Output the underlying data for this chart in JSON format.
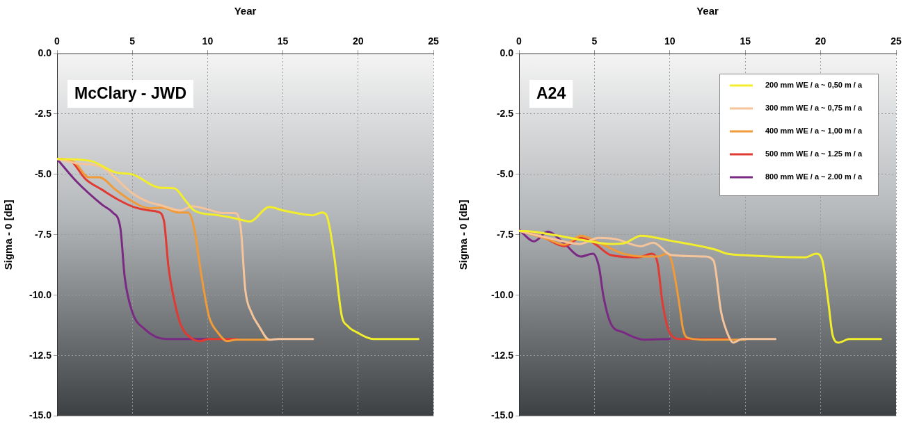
{
  "chart_data": [
    {
      "type": "line",
      "xlabel": "Year",
      "ylabel": "Sigma - 0 [dB]",
      "annotations": [
        "McClary - JWD"
      ],
      "xlim": [
        0,
        25
      ],
      "xticks": [
        0,
        5,
        10,
        15,
        20,
        25
      ],
      "ylim": [
        -15,
        0
      ],
      "yticks": [
        {
          "value": 0,
          "label": "0.0"
        },
        -2.5,
        {
          "value": -5,
          "label": "-5.0"
        },
        -7.5,
        {
          "value": -10,
          "label": "-10.0"
        },
        -12.5,
        {
          "value": -15,
          "label": "-15.0"
        }
      ],
      "grid": true,
      "legend": false,
      "marker": "none",
      "line_style": "solid",
      "series": [
        {
          "color": "#f2ee2c",
          "x": [
            0,
            2.2,
            3.9,
            5.0,
            6.8,
            7.8,
            8.5,
            9.1,
            10.7,
            11.9,
            12.8,
            14.1,
            15.0,
            17.0,
            17.6,
            17.9,
            18.4,
            18.9,
            19.3,
            19.9,
            21.0,
            24
          ],
          "values": [
            -4.36,
            -4.44,
            -4.92,
            -5.0,
            -5.55,
            -5.58,
            -6.06,
            -6.49,
            -6.69,
            -6.83,
            -6.95,
            -6.35,
            -6.49,
            -6.69,
            -6.58,
            -6.69,
            -8.34,
            -10.82,
            -11.27,
            -11.53,
            -11.81,
            -11.81
          ]
        },
        {
          "color": "#f6c49a",
          "x": [
            0,
            1.4,
            2.7,
            3.3,
            5.0,
            6.1,
            6.8,
            8.2,
            9.0,
            9.9,
            11.0,
            11.8,
            12.2,
            12.5,
            12.9,
            13.4,
            14.1,
            14.7,
            17
          ],
          "values": [
            -4.36,
            -4.55,
            -4.64,
            -4.83,
            -5.78,
            -6.15,
            -6.26,
            -6.49,
            -6.32,
            -6.43,
            -6.6,
            -6.6,
            -7.2,
            -9.76,
            -10.7,
            -11.27,
            -11.84,
            -11.81,
            -11.81
          ]
        },
        {
          "color": "#f09a38",
          "x": [
            0,
            1.15,
            2.1,
            2.8,
            3.9,
            5.0,
            6.1,
            7.0,
            8.1,
            8.7,
            9.1,
            9.5,
            9.8,
            10.1,
            10.7,
            11.3,
            11.9,
            14
          ],
          "values": [
            -4.36,
            -4.5,
            -5.12,
            -5.12,
            -5.64,
            -6.12,
            -6.4,
            -6.38,
            -6.58,
            -6.58,
            -7.2,
            -8.82,
            -9.96,
            -10.9,
            -11.56,
            -11.9,
            -11.84,
            -11.84
          ]
        },
        {
          "color": "#e03a32",
          "x": [
            0,
            0.8,
            1.9,
            3.0,
            4.1,
            5.1,
            6.1,
            6.7,
            7.1,
            7.4,
            7.8,
            8.2,
            9.0,
            9.5,
            10.1,
            12
          ],
          "values": [
            -4.36,
            -4.4,
            -5.2,
            -5.64,
            -6.06,
            -6.35,
            -6.49,
            -6.55,
            -6.92,
            -8.82,
            -10.25,
            -11.19,
            -11.81,
            -11.9,
            -11.81,
            -11.81
          ]
        },
        {
          "color": "#7a2a82",
          "x": [
            0,
            1.3,
            3.0,
            3.7,
            4.2,
            4.5,
            5.0,
            5.8,
            7.2,
            10
          ],
          "values": [
            -4.36,
            -5.3,
            -6.26,
            -6.58,
            -7.2,
            -9.28,
            -10.7,
            -11.39,
            -11.81,
            -11.81
          ]
        }
      ]
    },
    {
      "type": "line",
      "xlabel": "Year",
      "ylabel": "Sigma - 0 [dB]",
      "annotations": [
        "A24"
      ],
      "xlim": [
        0,
        25
      ],
      "xticks": [
        0,
        5,
        10,
        15,
        20,
        25
      ],
      "ylim": [
        -15,
        0
      ],
      "yticks": [
        {
          "value": 0,
          "label": "0.0"
        },
        -2.5,
        {
          "value": -5,
          "label": "-5.0"
        },
        -7.5,
        {
          "value": -10,
          "label": "-10.0"
        },
        -12.5,
        {
          "value": -15,
          "label": "-15.0"
        }
      ],
      "grid": true,
      "legend": "top right",
      "marker": "none",
      "line_style": "solid",
      "series": [
        {
          "name": "200 mm WE / a ~ 0,50 m / a",
          "color": "#f2ee2c",
          "x": [
            0,
            0.9,
            2.9,
            4.1,
            6.1,
            6.9,
            8.1,
            10.0,
            13.0,
            13.8,
            14.8,
            19.0,
            19.7,
            20.1,
            20.5,
            20.8,
            21.2,
            21.9,
            24
          ],
          "values": [
            -7.34,
            -7.37,
            -7.57,
            -7.71,
            -7.88,
            -7.86,
            -7.54,
            -7.74,
            -8.11,
            -8.28,
            -8.34,
            -8.43,
            -8.28,
            -8.54,
            -10.25,
            -11.67,
            -11.96,
            -11.81,
            -11.81
          ]
        },
        {
          "name": "300 mm WE / a ~ 0,75 m / a",
          "color": "#f6c49a",
          "x": [
            0,
            2.3,
            4.0,
            5.3,
            6.4,
            8.1,
            8.9,
            10.1,
            12.3,
            12.9,
            13.4,
            13.9,
            14.2,
            14.8,
            17
          ],
          "values": [
            -7.34,
            -7.68,
            -7.88,
            -7.63,
            -7.68,
            -7.97,
            -7.83,
            -8.34,
            -8.4,
            -8.57,
            -10.7,
            -11.7,
            -11.96,
            -11.81,
            -11.81
          ]
        },
        {
          "name": "400 mm WE / a ~ 1,00 m / a",
          "color": "#f09a38",
          "x": [
            0,
            1.9,
            3.0,
            4.1,
            5.3,
            6.9,
            8.3,
            9.2,
            9.8,
            10.1,
            10.6,
            10.9,
            11.3,
            12.3,
            15
          ],
          "values": [
            -7.34,
            -7.68,
            -7.91,
            -7.54,
            -7.83,
            -8.28,
            -8.4,
            -8.4,
            -8.28,
            -8.54,
            -10.25,
            -11.47,
            -11.78,
            -11.84,
            -11.84
          ]
        },
        {
          "name": "500 mm WE / a ~ 1.25 m / a",
          "color": "#e03a32",
          "x": [
            0,
            1.5,
            3.0,
            4.1,
            5.0,
            6.1,
            7.9,
            8.8,
            9.2,
            9.5,
            10.0,
            10.7,
            14
          ],
          "values": [
            -7.34,
            -7.57,
            -7.97,
            -7.63,
            -7.86,
            -8.34,
            -8.43,
            -8.28,
            -8.71,
            -10.25,
            -11.56,
            -11.81,
            -11.81
          ]
        },
        {
          "name": "800 mm WE / a ~ 2.00 m / a",
          "color": "#7a2a82",
          "x": [
            0,
            1.0,
            1.9,
            3.0,
            4.1,
            4.9,
            5.3,
            5.6,
            6.1,
            6.9,
            8.3,
            10.0
          ],
          "values": [
            -7.29,
            -7.77,
            -7.37,
            -7.86,
            -8.4,
            -8.28,
            -8.82,
            -10.05,
            -11.19,
            -11.53,
            -11.84,
            -11.81
          ]
        }
      ]
    }
  ]
}
